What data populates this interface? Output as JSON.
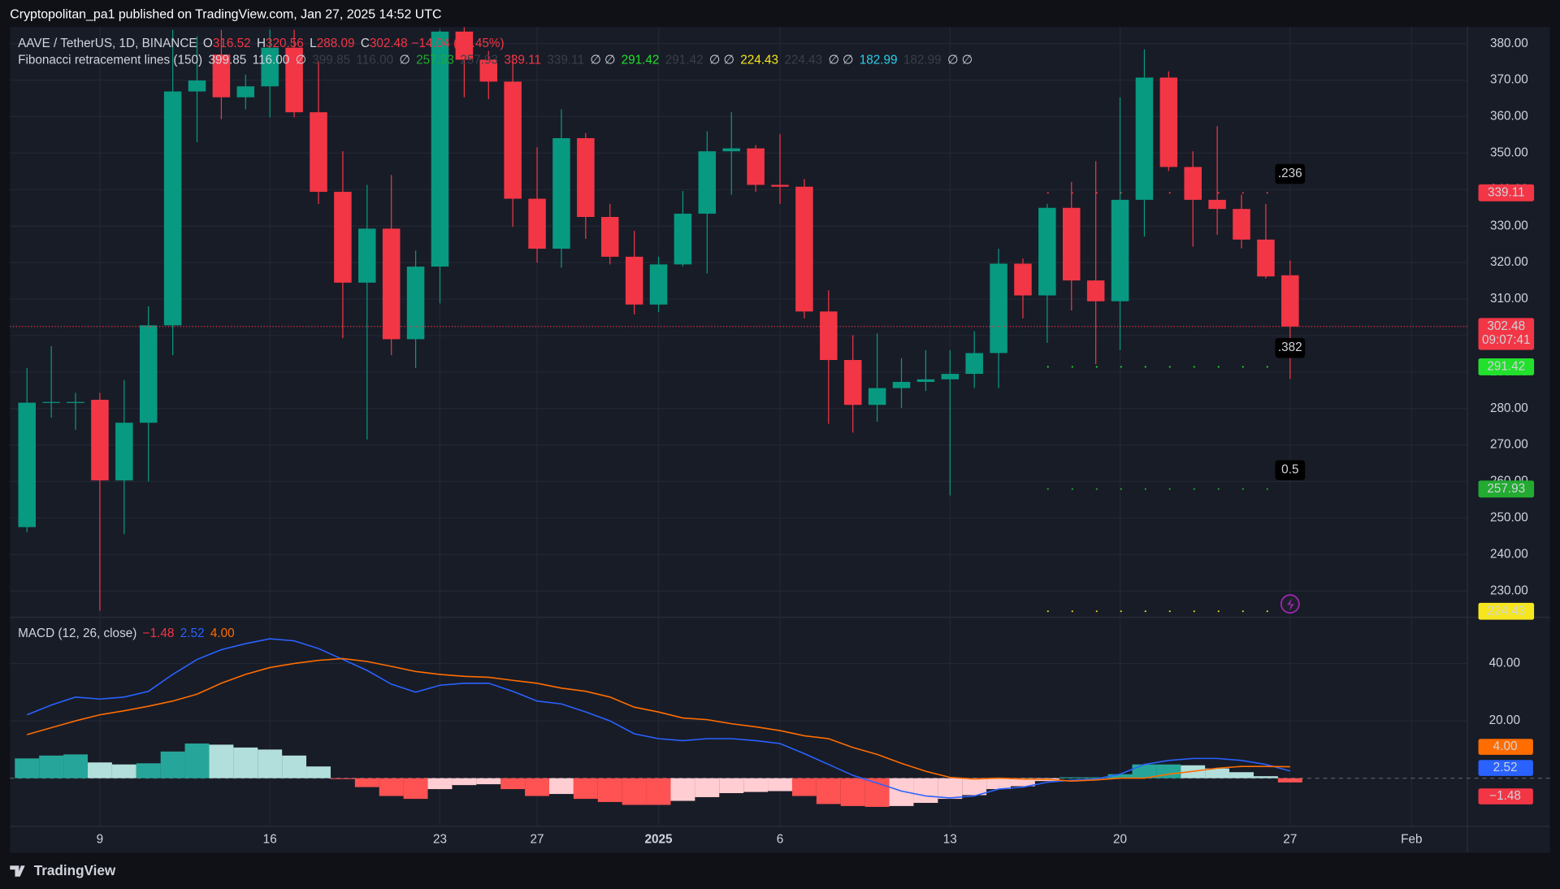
{
  "chart_data": {
    "type": "candlestick",
    "banner": "Cryptopolitan_pa1 published on TradingView.com, Jan 27, 2025 14:52 UTC",
    "brand": "TradingView",
    "symbol": "AAVE / TetherUS, 1D, BINANCE",
    "ohlc_legend": [
      {
        "key": "O",
        "value": "316.52"
      },
      {
        "key": "H",
        "value": "320.56"
      },
      {
        "key": "L",
        "value": "288.09"
      },
      {
        "key": "C",
        "value": "302.48"
      }
    ],
    "change": "−14.04 (−4.45%)",
    "fib_legend": {
      "label": "Fibonacci retracement lines (150)",
      "items": [
        {
          "text": "399.85",
          "color": "#d1d4dc"
        },
        {
          "text": "116.00",
          "color": "#d1d4dc"
        },
        {
          "text": "∅",
          "color": "#d1d4dc"
        },
        {
          "text": "399.85",
          "color": "#3a3e49"
        },
        {
          "text": "116.00",
          "color": "#3a3e49"
        },
        {
          "text": "∅",
          "color": "#d1d4dc"
        },
        {
          "text": "257.93",
          "color": "#22ab30"
        },
        {
          "text": "257.93",
          "color": "#3a3e49"
        },
        {
          "text": "339.11",
          "color": "#f23645"
        },
        {
          "text": "339.11",
          "color": "#3a3e49"
        },
        {
          "text": "∅ ∅",
          "color": "#d1d4dc"
        },
        {
          "text": "291.42",
          "color": "#22e02c"
        },
        {
          "text": "291.42",
          "color": "#3a3e49"
        },
        {
          "text": "∅ ∅",
          "color": "#d1d4dc"
        },
        {
          "text": "224.43",
          "color": "#f5e61e"
        },
        {
          "text": "224.43",
          "color": "#3a3e49"
        },
        {
          "text": "∅ ∅",
          "color": "#d1d4dc"
        },
        {
          "text": "182.99",
          "color": "#2cd0e8"
        },
        {
          "text": "182.99",
          "color": "#3a3e49"
        },
        {
          "text": "∅ ∅",
          "color": "#d1d4dc"
        }
      ]
    },
    "up_color": "#089981",
    "down_color": "#f23645",
    "open": [
      247.5,
      281.8,
      281.8,
      282.4,
      260.3,
      276.1,
      302.8,
      366.9,
      377.0,
      365.3,
      368.3,
      378.9,
      361.2,
      339.4,
      314.5,
      329.3,
      299.0,
      318.9,
      383.3,
      375.6,
      369.6,
      337.5,
      323.8,
      354.1,
      332.5,
      321.6,
      308.5,
      319.5,
      333.4,
      350.5,
      351.3,
      341.3,
      340.8,
      306.6,
      293.3,
      281.0,
      285.6,
      287.3,
      288.0,
      289.5,
      295.2,
      319.7,
      311.0,
      335.0,
      315.1,
      309.4,
      337.2,
      370.7,
      346.2,
      337.2,
      334.7,
      326.3,
      316.52
    ],
    "high": [
      291.1,
      297.1,
      284.3,
      284.3,
      287.8,
      308.0,
      383.8,
      382.0,
      383.8,
      371.5,
      383.8,
      383.8,
      375.1,
      350.5,
      341.3,
      344.0,
      323.3,
      383.8,
      384.5,
      378.0,
      377.0,
      351.6,
      362.0,
      355.5,
      336.1,
      328.7,
      321.6,
      339.6,
      356.0,
      361.2,
      352.2,
      355.2,
      342.9,
      312.4,
      300.1,
      300.6,
      293.8,
      296.0,
      296.0,
      301.2,
      323.8,
      321.1,
      336.1,
      342.1,
      347.8,
      365.3,
      378.4,
      372.4,
      350.5,
      357.4,
      338.6,
      336.1,
      320.56
    ],
    "low": [
      246.1,
      277.5,
      274.2,
      224.6,
      245.6,
      260.0,
      294.6,
      353.0,
      359.3,
      362.0,
      359.8,
      359.8,
      336.1,
      299.3,
      271.5,
      294.6,
      291.1,
      308.8,
      365.3,
      364.8,
      329.8,
      320.0,
      318.6,
      326.5,
      319.5,
      305.8,
      306.4,
      318.9,
      317.0,
      338.6,
      339.4,
      336.1,
      304.7,
      275.8,
      273.4,
      276.4,
      280.2,
      284.8,
      256.2,
      285.6,
      285.6,
      304.7,
      298.0,
      306.9,
      292.2,
      296.0,
      327.1,
      345.1,
      324.4,
      327.6,
      323.9,
      315.6,
      288.09
    ],
    "close": [
      281.6,
      281.8,
      281.8,
      260.3,
      276.1,
      302.8,
      366.9,
      369.9,
      365.3,
      368.3,
      378.9,
      361.2,
      339.4,
      314.5,
      329.3,
      299.0,
      318.9,
      383.3,
      375.6,
      369.6,
      337.5,
      323.8,
      354.1,
      332.5,
      321.6,
      308.5,
      319.5,
      333.4,
      350.5,
      351.3,
      341.3,
      340.8,
      306.6,
      293.3,
      281.0,
      285.6,
      287.3,
      288.0,
      289.5,
      295.2,
      319.7,
      311.0,
      335.0,
      315.1,
      309.4,
      337.2,
      370.7,
      346.2,
      337.2,
      334.7,
      326.3,
      316.2,
      302.48
    ],
    "xlim": [
      -0.7,
      59.3
    ],
    "xticks": [
      {
        "value": 3,
        "label": "9"
      },
      {
        "value": 10,
        "label": "16"
      },
      {
        "value": 17,
        "label": "23"
      },
      {
        "value": 21,
        "label": "27"
      },
      {
        "value": 26,
        "label": "2025"
      },
      {
        "value": 31,
        "label": "6"
      },
      {
        "value": 38,
        "label": "13"
      },
      {
        "value": 45,
        "label": "20"
      },
      {
        "value": 52,
        "label": "27"
      },
      {
        "value": 57,
        "label": "Feb"
      }
    ],
    "ylim": [
      222.9,
      384.6
    ],
    "yticks": [
      {
        "value": 230,
        "label": "230.00"
      },
      {
        "value": 240,
        "label": "240.00"
      },
      {
        "value": 250,
        "label": "250.00"
      },
      {
        "value": 260,
        "label": "260.00"
      },
      {
        "value": 270,
        "label": "270.00"
      },
      {
        "value": 280,
        "label": "280.00"
      },
      {
        "value": 290,
        "label": "290.00"
      },
      {
        "value": 300,
        "label": "300.00"
      },
      {
        "value": 310,
        "label": "310.00"
      },
      {
        "value": 320,
        "label": "320.00"
      },
      {
        "value": 330,
        "label": "330.00"
      },
      {
        "value": 340,
        "label": "340.00"
      },
      {
        "value": 350,
        "label": "350.00"
      },
      {
        "value": 360,
        "label": "360.00"
      },
      {
        "value": 370,
        "label": "370.00"
      },
      {
        "value": 380,
        "label": "380.00"
      }
    ],
    "grid": true,
    "fib_levels": [
      {
        "label": ".236",
        "value": 339.11,
        "color": "#f23645"
      },
      {
        "label": ".382",
        "value": 291.42,
        "color": "#22e02c"
      },
      {
        "label": "0.5",
        "value": 257.93,
        "color": "#22ab30"
      },
      {
        "value": 224.43,
        "color": "#f5e61e"
      }
    ],
    "fib_start": 42,
    "price_tags": [
      {
        "value": 339.11,
        "color": "#f23645"
      },
      {
        "value": 302.48,
        "color": "#f23645",
        "countdown": "09:07:41"
      },
      {
        "value": 291.42,
        "color": "#22e02c"
      },
      {
        "value": 257.93,
        "color": "#22ab30"
      },
      {
        "value": 224.43,
        "color": "#f5e61e"
      }
    ],
    "macd": {
      "title": "MACD (12, 26, close)",
      "y2lim": [
        -16.6,
        55.9
      ],
      "y2ticks": [
        {
          "value": 20,
          "label": "20.00"
        },
        {
          "value": 40,
          "label": "40.00"
        }
      ],
      "hist_colors": {
        "pos_rise": "#26a69a",
        "pos_fall": "#b2dfdb",
        "neg_fall": "#ff5252",
        "neg_rise": "#ffcdd2"
      },
      "series": [
        {
          "name": "−1.48",
          "kind": "histogram",
          "color": "#f23645",
          "axis": "y2",
          "values": [
            6.9,
            7.9,
            8.3,
            5.5,
            4.8,
            5.2,
            9.3,
            12.1,
            11.7,
            10.7,
            10.0,
            7.9,
            4.1,
            -0.3,
            -3.1,
            -6.2,
            -7.2,
            -3.8,
            -2.4,
            -2.1,
            -3.8,
            -6.2,
            -5.5,
            -7.2,
            -8.3,
            -9.3,
            -9.3,
            -7.9,
            -6.6,
            -5.2,
            -4.8,
            -4.5,
            -6.2,
            -9.0,
            -9.7,
            -10.0,
            -9.7,
            -8.6,
            -7.2,
            -5.9,
            -3.8,
            -2.8,
            -1.0,
            0.3,
            0.3,
            1.4,
            4.8,
            4.8,
            4.5,
            3.4,
            2.1,
            0.7,
            -1.48
          ]
        },
        {
          "name": "2.52",
          "kind": "line",
          "color": "#2962ff",
          "axis": "y2",
          "values": [
            22.1,
            25.5,
            28.3,
            27.6,
            28.3,
            30.3,
            36.2,
            41.4,
            44.8,
            46.9,
            48.6,
            47.9,
            45.2,
            41.4,
            37.6,
            32.8,
            30.0,
            32.4,
            33.1,
            33.1,
            30.3,
            26.9,
            25.9,
            23.1,
            20.0,
            15.5,
            13.8,
            13.1,
            13.8,
            13.8,
            13.1,
            12.1,
            8.6,
            4.8,
            1.0,
            -1.7,
            -4.5,
            -6.2,
            -6.9,
            -6.2,
            -3.8,
            -3.1,
            -1.4,
            -0.7,
            -0.3,
            1.4,
            4.8,
            6.2,
            6.9,
            6.9,
            6.2,
            4.8,
            2.52
          ]
        },
        {
          "name": "4.00",
          "kind": "line",
          "color": "#ff6d00",
          "axis": "y2",
          "values": [
            15.2,
            17.6,
            20.0,
            22.1,
            23.5,
            25.1,
            26.9,
            29.3,
            33.1,
            36.2,
            38.6,
            40.0,
            41.1,
            41.7,
            40.7,
            39.0,
            37.2,
            36.2,
            35.5,
            35.2,
            34.1,
            33.1,
            31.4,
            30.3,
            28.3,
            24.8,
            23.1,
            21.0,
            20.4,
            19.0,
            17.9,
            16.6,
            14.8,
            13.8,
            10.7,
            8.3,
            5.2,
            2.4,
            0.3,
            -0.3,
            0.0,
            -0.3,
            -0.4,
            -1.0,
            -0.6,
            0.0,
            0.0,
            1.4,
            2.4,
            3.5,
            4.1,
            4.1,
            4.0
          ]
        }
      ]
    }
  }
}
